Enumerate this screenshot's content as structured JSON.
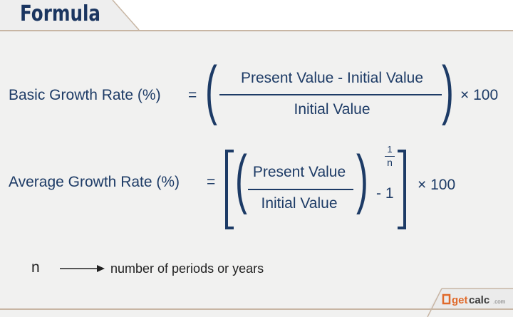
{
  "header": {
    "title": "Formula"
  },
  "basic": {
    "label": "Basic Growth Rate (%)",
    "equals": "=",
    "numerator": "Present Value - Initial Value",
    "denominator": "Initial Value",
    "multiplier": "× 100"
  },
  "average": {
    "label": "Average Growth Rate (%)",
    "equals": "=",
    "numerator": "Present Value",
    "denominator": "Initial Value",
    "exp_num": "1",
    "exp_den": "n",
    "minus_one": "- 1",
    "multiplier": "× 100"
  },
  "legend": {
    "symbol": "n",
    "description": "number of periods or years"
  },
  "logo": {
    "text": "getcalc.com"
  },
  "colors": {
    "text": "#1d3b66",
    "background": "#f1f1f0",
    "border": "#c8b6a4"
  }
}
